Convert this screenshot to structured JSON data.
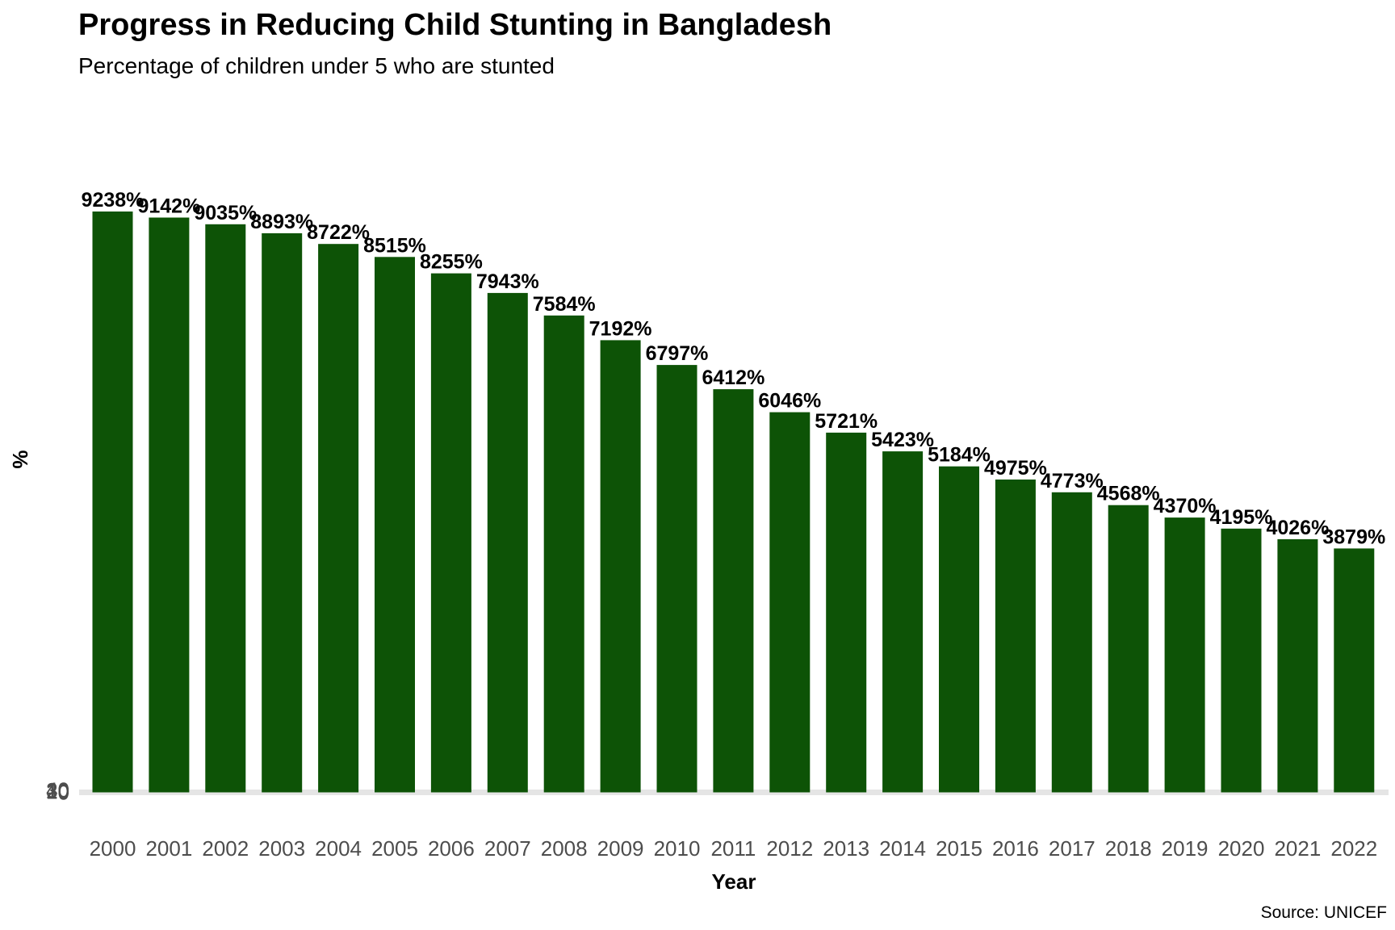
{
  "chart_data": {
    "type": "bar",
    "title": "Progress in Reducing Child Stunting in Bangladesh",
    "subtitle": "Percentage of children under 5 who are stunted",
    "xlabel": "Year",
    "ylabel": "%",
    "caption": "Source: UNICEF",
    "categories": [
      "2000",
      "2001",
      "2002",
      "2003",
      "2004",
      "2005",
      "2006",
      "2007",
      "2008",
      "2009",
      "2010",
      "2011",
      "2012",
      "2013",
      "2014",
      "2015",
      "2016",
      "2017",
      "2018",
      "2019",
      "2020",
      "2021",
      "2022"
    ],
    "values": [
      9238,
      9142,
      9035,
      8893,
      8722,
      8515,
      8255,
      7943,
      7584,
      7192,
      6797,
      6412,
      6046,
      5721,
      5423,
      5184,
      4975,
      4773,
      4568,
      4370,
      4195,
      4026,
      3879
    ],
    "labels": [
      "9238%",
      "9142%",
      "9035%",
      "8893%",
      "8722%",
      "8515%",
      "8255%",
      "7943%",
      "7584%",
      "7192%",
      "6797%",
      "6412%",
      "6046%",
      "5721%",
      "5423%",
      "5184%",
      "4975%",
      "4773%",
      "4568%",
      "4370%",
      "4195%",
      "4026%",
      "3879%"
    ],
    "y_ticks": [
      "0",
      "10",
      "20",
      "30",
      "40"
    ],
    "bar_color": "#0d5306",
    "baseline_color": "#e5e5e5",
    "grid": false,
    "legend": "none"
  }
}
